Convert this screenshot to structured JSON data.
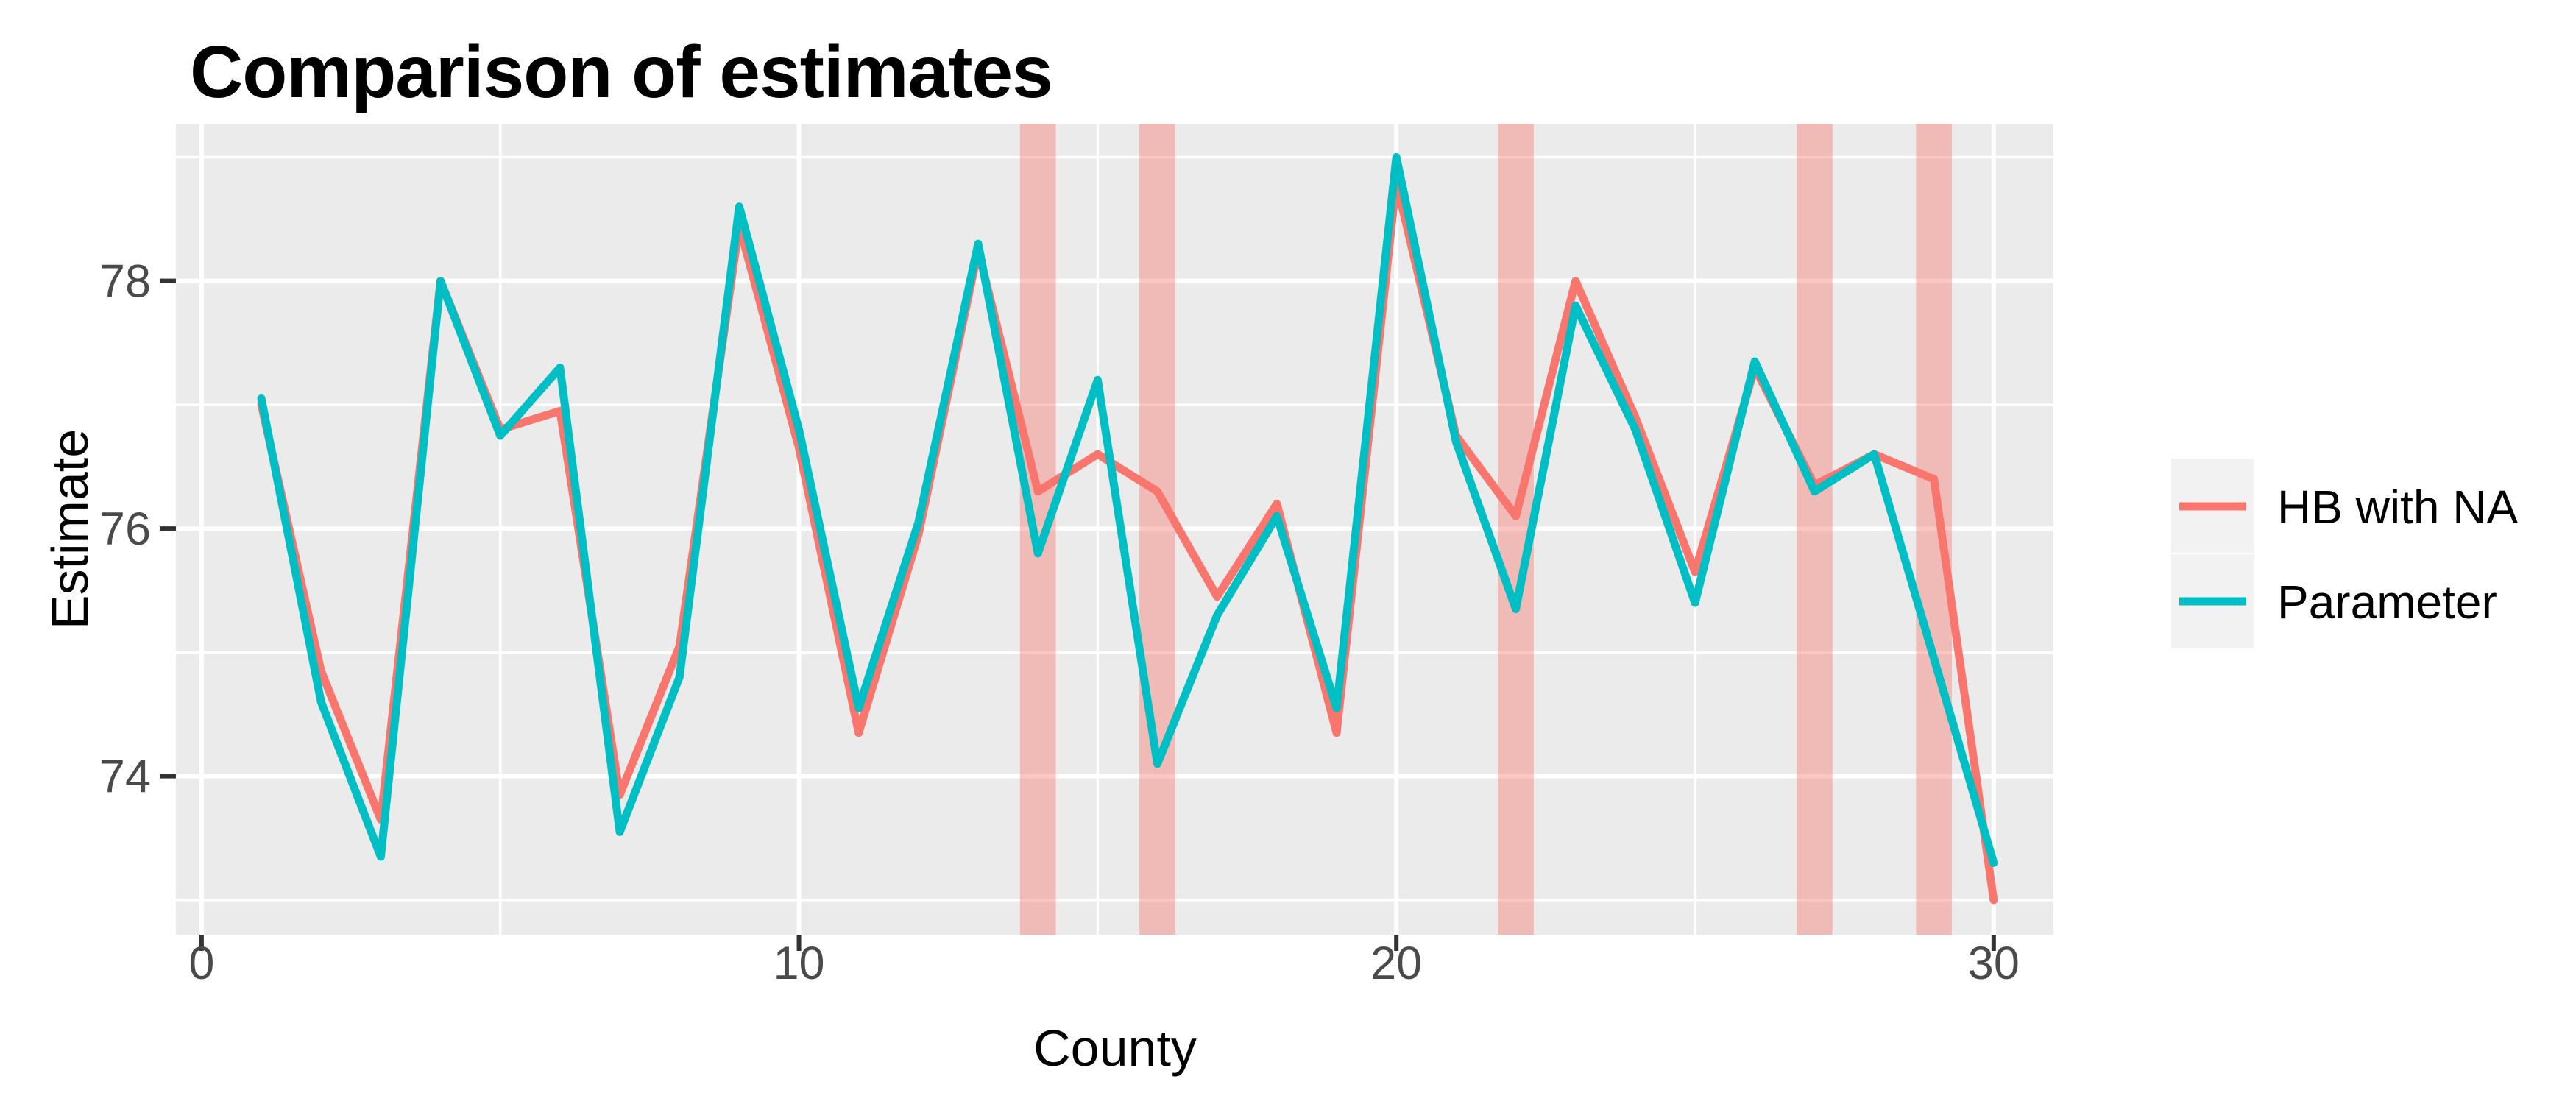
{
  "title": "Comparison of estimates",
  "axes": {
    "x": {
      "label": "County",
      "ticks": [
        0,
        10,
        20,
        30
      ],
      "minor_ticks": [
        5,
        15,
        25
      ],
      "range": [
        -0.43,
        31.0
      ]
    },
    "y": {
      "label": "Estimate",
      "ticks": [
        74,
        76,
        78
      ],
      "minor_ticks": [
        73,
        75,
        77,
        79
      ],
      "range": [
        72.72,
        79.27
      ]
    }
  },
  "legend": {
    "position": "right",
    "entries": [
      {
        "label": "HB with NA",
        "color": "#F8766D"
      },
      {
        "label": "Parameter",
        "color": "#00BFC4"
      }
    ]
  },
  "chart_data": {
    "type": "line",
    "title": "Comparison of estimates",
    "xlabel": "County",
    "ylabel": "Estimate",
    "xlim": [
      -0.43,
      31.0
    ],
    "ylim": [
      72.72,
      79.27
    ],
    "grid": true,
    "x": [
      1,
      2,
      3,
      4,
      5,
      6,
      7,
      8,
      9,
      10,
      11,
      12,
      13,
      14,
      15,
      16,
      17,
      18,
      19,
      20,
      21,
      22,
      23,
      24,
      25,
      26,
      27,
      28,
      29,
      30
    ],
    "series": [
      {
        "name": "HB with NA",
        "color": "#F8766D",
        "values": [
          77.0,
          74.85,
          73.65,
          78.0,
          76.8,
          76.95,
          73.85,
          75.05,
          78.45,
          76.65,
          74.35,
          75.95,
          78.25,
          76.3,
          76.6,
          76.3,
          75.45,
          76.2,
          74.35,
          78.8,
          76.75,
          76.1,
          78.0,
          76.9,
          75.65,
          77.3,
          76.35,
          76.6,
          76.4,
          73.0
        ]
      },
      {
        "name": "Parameter",
        "color": "#00BFC4",
        "values": [
          77.05,
          74.6,
          73.35,
          78.0,
          76.75,
          77.3,
          73.55,
          74.8,
          78.6,
          76.8,
          74.55,
          76.05,
          78.3,
          75.8,
          77.2,
          74.1,
          75.3,
          76.1,
          74.55,
          79.0,
          76.7,
          75.35,
          77.8,
          76.8,
          75.4,
          77.35,
          76.3,
          76.6,
          74.95,
          73.3
        ]
      }
    ],
    "na_highlight_counties": [
      14,
      16,
      22,
      27,
      29
    ],
    "na_band_half_width": 0.3
  },
  "colors": {
    "panel_background": "#EBEBEB",
    "gridline": "#FFFFFF",
    "na_band": "rgba(248,118,112,0.42)",
    "tick_mark": "#333333",
    "tick_label": "#4A4A4A",
    "text": "#000000",
    "legend_key_background": "#F2F2F2"
  }
}
